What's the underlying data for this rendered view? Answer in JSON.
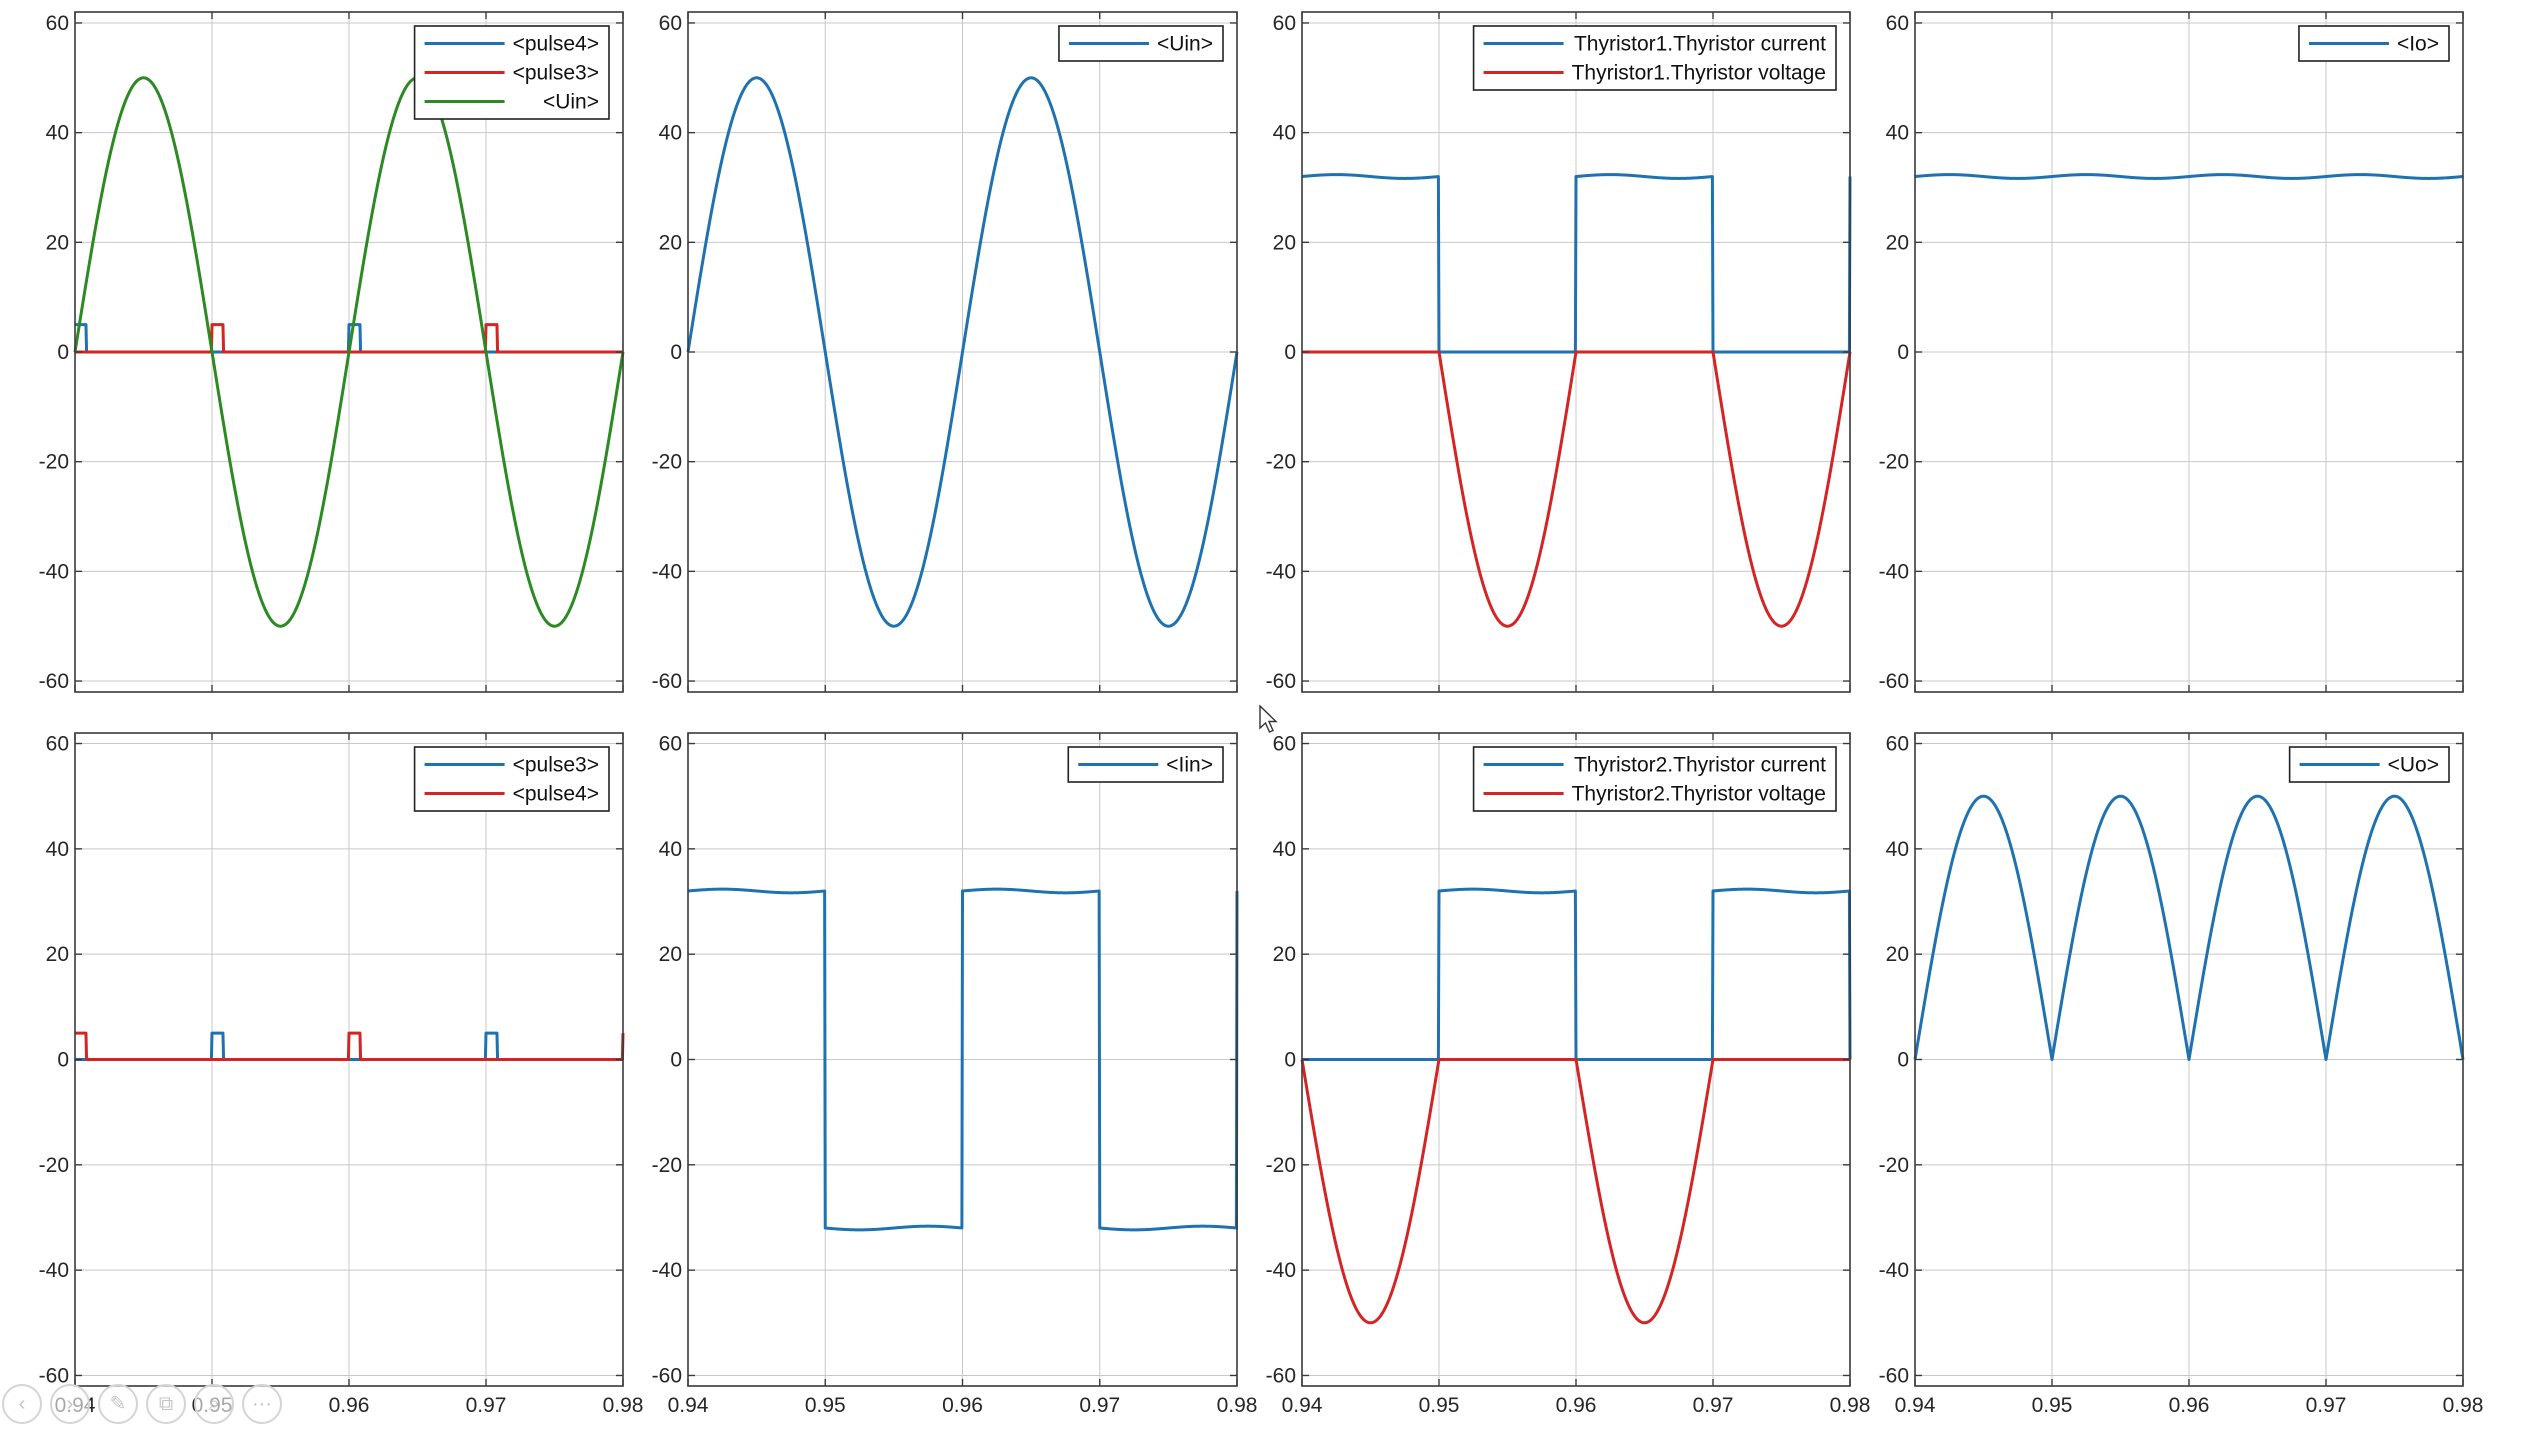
{
  "colors": {
    "blue": "#1f72b0",
    "red": "#d42424",
    "green": "#2c8a23",
    "grid": "#c8c8c8",
    "axis": "#3a3a3a"
  },
  "toolbar": {
    "buttons": [
      {
        "name": "prev",
        "icon": "chevron-left-icon"
      },
      {
        "name": "next",
        "icon": "chevron-right-icon"
      },
      {
        "name": "pen",
        "icon": "pen-icon"
      },
      {
        "name": "slides",
        "icon": "slides-icon"
      },
      {
        "name": "zoom",
        "icon": "zoom-icon"
      },
      {
        "name": "more",
        "icon": "more-icon"
      }
    ]
  },
  "chart_data": [
    {
      "type": "line",
      "x_ticks": [
        "0.94",
        "0.95",
        "0.96",
        "0.97",
        "0.98"
      ],
      "y_ticks": [
        "60",
        "40",
        "20",
        "0",
        "-20",
        "-40",
        "-60"
      ],
      "xlim": [
        0.94,
        0.98
      ],
      "ylim": [
        -62,
        62
      ],
      "grid": true,
      "legend_placement": "top-right",
      "series": [
        {
          "name": "<pulse4>",
          "color": "blue",
          "kind": "pulse",
          "amplitude": 5,
          "width": 0.0008,
          "starts": [
            0.94,
            0.96
          ]
        },
        {
          "name": "<pulse3>",
          "color": "red",
          "kind": "pulse",
          "amplitude": 5,
          "width": 0.0008,
          "starts": [
            0.95,
            0.97
          ]
        },
        {
          "name": "<Uin>",
          "color": "green",
          "kind": "sine",
          "amplitude": 50,
          "frequency_hz": 50
        }
      ]
    },
    {
      "type": "line",
      "x_ticks": [
        "0.94",
        "0.95",
        "0.96",
        "0.97",
        "0.98"
      ],
      "y_ticks": [
        "60",
        "40",
        "20",
        "0",
        "-20",
        "-40",
        "-60"
      ],
      "xlim": [
        0.94,
        0.98
      ],
      "ylim": [
        -62,
        62
      ],
      "grid": true,
      "legend_placement": "top-right",
      "series": [
        {
          "name": "<Uin>",
          "color": "blue",
          "kind": "sine",
          "amplitude": 50,
          "frequency_hz": 50
        }
      ]
    },
    {
      "type": "line",
      "x_ticks": [
        "0.94",
        "0.95",
        "0.96",
        "0.97",
        "0.98"
      ],
      "y_ticks": [
        "60",
        "40",
        "20",
        "0",
        "-20",
        "-40",
        "-60"
      ],
      "xlim": [
        0.94,
        0.98
      ],
      "ylim": [
        -62,
        62
      ],
      "grid": true,
      "legend_placement": "top-right",
      "series": [
        {
          "name": "Thyristor1.Thyristor current",
          "color": "blue",
          "kind": "square",
          "level": 32,
          "on_phase": 0
        },
        {
          "name": "Thyristor1.Thyristor voltage",
          "color": "red",
          "kind": "neg_half_sine",
          "amplitude": 50,
          "on_phase": 1
        }
      ]
    },
    {
      "type": "line",
      "x_ticks": [
        "0.94",
        "0.95",
        "0.96",
        "0.97",
        "0.98"
      ],
      "y_ticks": [
        "60",
        "40",
        "20",
        "0",
        "-20",
        "-40",
        "-60"
      ],
      "xlim": [
        0.94,
        0.98
      ],
      "ylim": [
        -62,
        62
      ],
      "grid": true,
      "legend_placement": "top-right",
      "series": [
        {
          "name": "<Io>",
          "color": "blue",
          "kind": "ripple",
          "level": 32,
          "ripple": 0.35
        }
      ]
    },
    {
      "type": "line",
      "x_ticks": [
        "0.94",
        "0.95",
        "0.96",
        "0.97",
        "0.98"
      ],
      "y_ticks": [
        "60",
        "40",
        "20",
        "0",
        "-20",
        "-40",
        "-60"
      ],
      "xlim": [
        0.94,
        0.98
      ],
      "ylim": [
        -62,
        62
      ],
      "grid": true,
      "legend_placement": "top-right",
      "series": [
        {
          "name": "<pulse3>",
          "color": "blue",
          "kind": "pulse",
          "amplitude": 5,
          "width": 0.0008,
          "starts": [
            0.95,
            0.97
          ]
        },
        {
          "name": "<pulse4>",
          "color": "red",
          "kind": "pulse",
          "amplitude": 5,
          "width": 0.0008,
          "starts": [
            0.94,
            0.96,
            0.98
          ]
        }
      ]
    },
    {
      "type": "line",
      "x_ticks": [
        "0.94",
        "0.95",
        "0.96",
        "0.97",
        "0.98"
      ],
      "y_ticks": [
        "60",
        "40",
        "20",
        "0",
        "-20",
        "-40",
        "-60"
      ],
      "xlim": [
        0.94,
        0.98
      ],
      "ylim": [
        -62,
        62
      ],
      "grid": true,
      "legend_placement": "top-right",
      "series": [
        {
          "name": "<Iin>",
          "color": "blue",
          "kind": "alt_square",
          "level": 32
        }
      ]
    },
    {
      "type": "line",
      "x_ticks": [
        "0.94",
        "0.95",
        "0.96",
        "0.97",
        "0.98"
      ],
      "y_ticks": [
        "60",
        "40",
        "20",
        "0",
        "-20",
        "-40",
        "-60"
      ],
      "xlim": [
        0.94,
        0.98
      ],
      "ylim": [
        -62,
        62
      ],
      "grid": true,
      "legend_placement": "top-right",
      "series": [
        {
          "name": "Thyristor2.Thyristor current",
          "color": "blue",
          "kind": "square",
          "level": 32,
          "on_phase": 1
        },
        {
          "name": "Thyristor2.Thyristor voltage",
          "color": "red",
          "kind": "neg_half_sine",
          "amplitude": 50,
          "on_phase": 0
        }
      ]
    },
    {
      "type": "line",
      "x_ticks": [
        "0.94",
        "0.95",
        "0.96",
        "0.97",
        "0.98"
      ],
      "y_ticks": [
        "60",
        "40",
        "20",
        "0",
        "-20",
        "-40",
        "-60"
      ],
      "xlim": [
        0.94,
        0.98
      ],
      "ylim": [
        -62,
        62
      ],
      "grid": true,
      "legend_placement": "top-right",
      "series": [
        {
          "name": "<Uo>",
          "color": "blue",
          "kind": "rectified_sine",
          "amplitude": 50,
          "frequency_hz": 50
        }
      ]
    }
  ]
}
